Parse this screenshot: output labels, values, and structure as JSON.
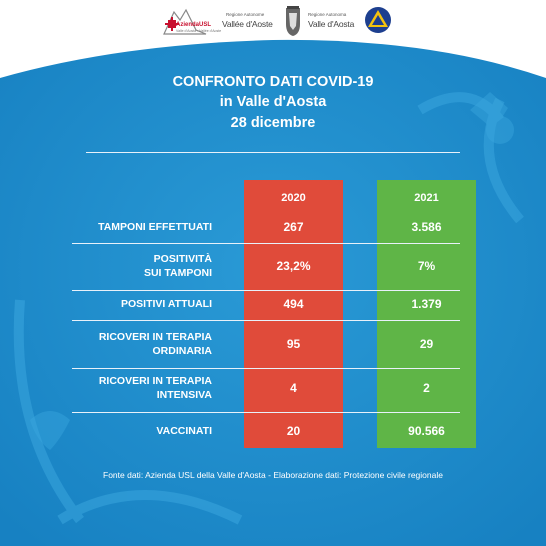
{
  "logos": {
    "asl_text": "AziendaUSL",
    "asl_sub": "Valle d'Aosta - Vallée d'Aoste",
    "region1_small": "Regione Autonome",
    "region1_big": "Vallée d'Aoste",
    "region2_small": "Regione Autonoma",
    "region2_big": "Valle d'Aosta"
  },
  "title": {
    "line1": "CONFRONTO DATI COVID-19",
    "line2": "in Valle d'Aosta",
    "line3": "28 dicembre"
  },
  "columns": {
    "col1": "2020",
    "col2": "2021"
  },
  "rows": [
    {
      "label_lines": [
        "TAMPONI  EFFETTUATI"
      ],
      "v2020": "267",
      "v2021": "3.586"
    },
    {
      "label_lines": [
        "POSITIVITÀ",
        "SUI TAMPONI"
      ],
      "v2020": "23,2%",
      "v2021": "7%"
    },
    {
      "label_lines": [
        "POSITIVI ATTUALI"
      ],
      "v2020": "494",
      "v2021": "1.379"
    },
    {
      "label_lines": [
        "RICOVERI IN TERAPIA",
        "ORDINARIA"
      ],
      "v2020": "95",
      "v2021": "29"
    },
    {
      "label_lines": [
        "RICOVERI IN TERAPIA",
        "INTENSIVA"
      ],
      "v2020": "4",
      "v2021": "2"
    },
    {
      "label_lines": [
        "VACCINATI"
      ],
      "v2020": "20",
      "v2021": "90.566"
    }
  ],
  "footer": "Fonte dati: Azienda USL della Valle d'Aosta - Elaborazione dati: Protezione civile regionale",
  "colors": {
    "background_blue": "#1f8fcf",
    "col_2020": "#e04b3a",
    "col_2021": "#5fb547"
  }
}
